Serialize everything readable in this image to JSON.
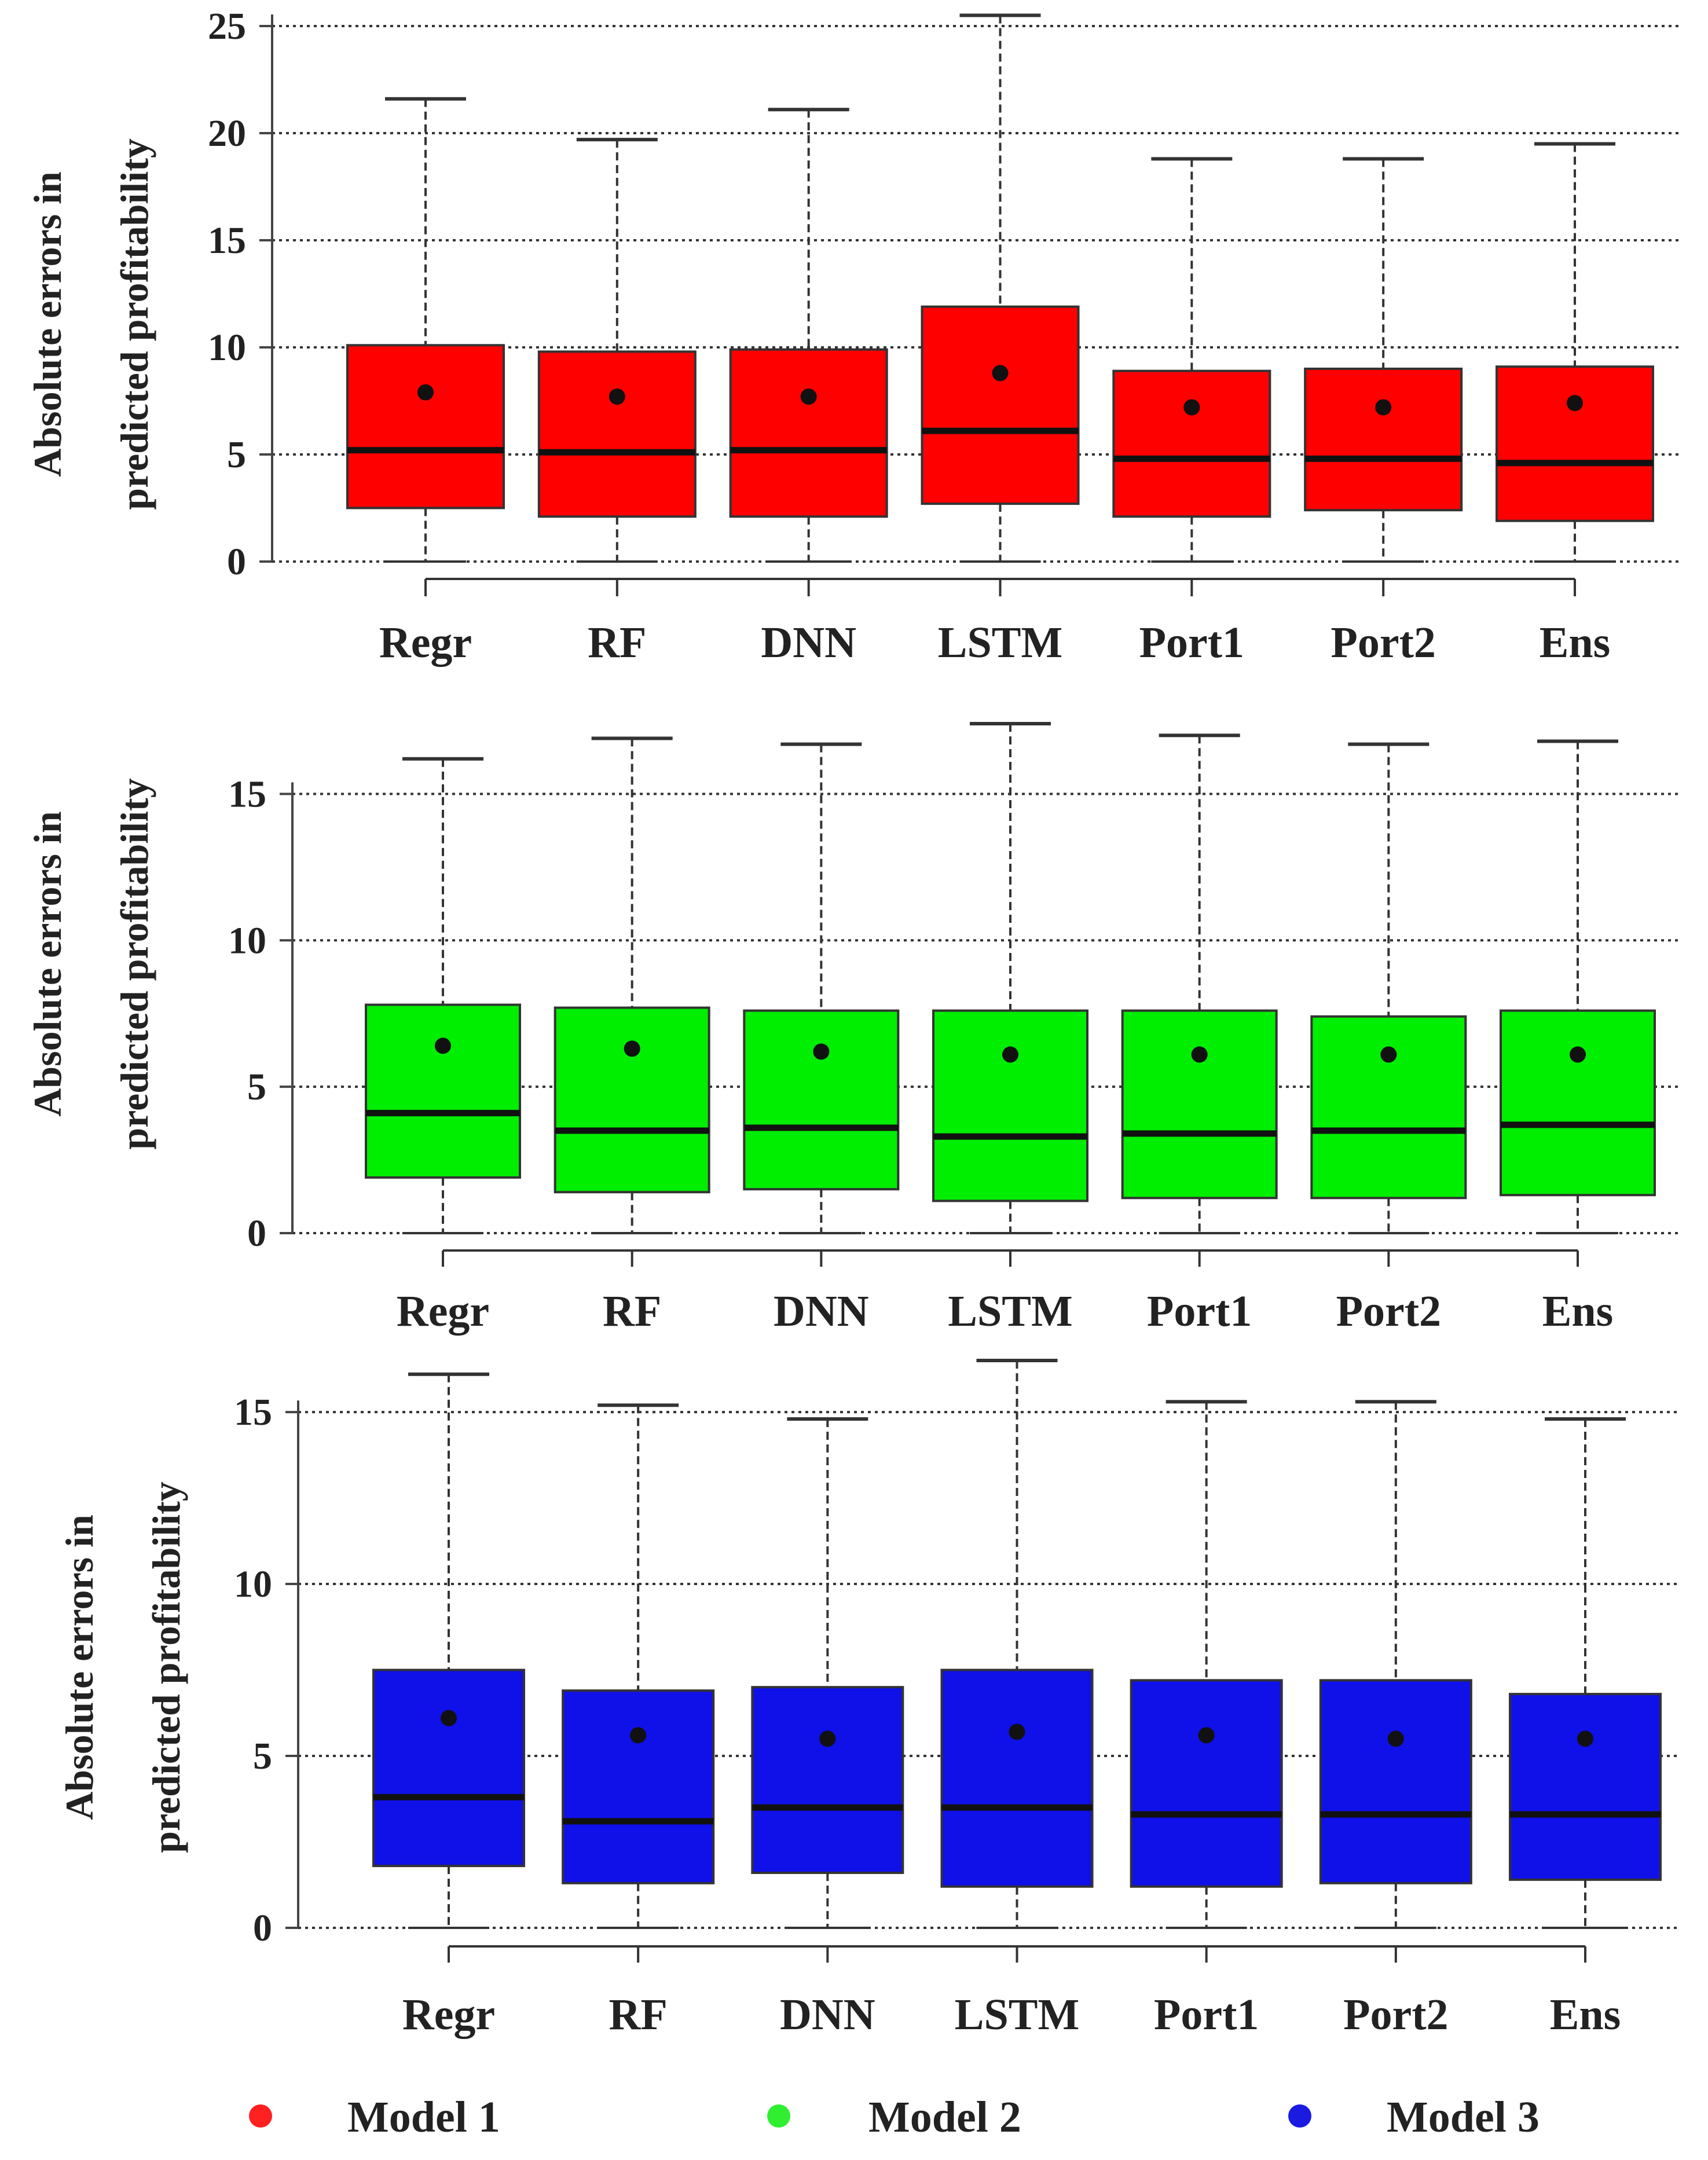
{
  "chart_data": [
    {
      "type": "box",
      "title": "",
      "model": "Model 1",
      "color": "#ff0000",
      "ylabel": [
        "Absolute  errors in",
        "predicted profitability"
      ],
      "xlabel": "",
      "ylim": [
        0,
        25
      ],
      "yticks": [
        0,
        5,
        10,
        15,
        20,
        25
      ],
      "grid": true,
      "categories": [
        "Regr",
        "RF",
        "DNN",
        "LSTM",
        "Port1",
        "Port2",
        "Ens"
      ],
      "boxes": [
        {
          "min": 0,
          "q1": 2.5,
          "median": 5.2,
          "q3": 10.1,
          "max": 21.6,
          "mean": 7.9
        },
        {
          "min": 0,
          "q1": 2.1,
          "median": 5.1,
          "q3": 9.8,
          "max": 19.7,
          "mean": 7.7
        },
        {
          "min": 0,
          "q1": 2.1,
          "median": 5.2,
          "q3": 9.9,
          "max": 21.1,
          "mean": 7.7
        },
        {
          "min": 0,
          "q1": 2.7,
          "median": 6.1,
          "q3": 11.9,
          "max": 25.5,
          "mean": 8.8
        },
        {
          "min": 0,
          "q1": 2.1,
          "median": 4.8,
          "q3": 8.9,
          "max": 18.8,
          "mean": 7.2
        },
        {
          "min": 0,
          "q1": 2.4,
          "median": 4.8,
          "q3": 9.0,
          "max": 18.8,
          "mean": 7.2
        },
        {
          "min": 0,
          "q1": 1.9,
          "median": 4.6,
          "q3": 9.1,
          "max": 19.5,
          "mean": 7.4
        }
      ]
    },
    {
      "type": "box",
      "title": "",
      "model": "Model 2",
      "color": "#00ee00",
      "ylabel": [
        "Absolute  errors in",
        "predicted profitability"
      ],
      "xlabel": "",
      "ylim": [
        0,
        17.5
      ],
      "yticks": [
        0,
        5,
        10,
        15
      ],
      "grid": true,
      "categories": [
        "Regr",
        "RF",
        "DNN",
        "LSTM",
        "Port1",
        "Port2",
        "Ens"
      ],
      "boxes": [
        {
          "min": 0,
          "q1": 1.9,
          "median": 4.1,
          "q3": 7.8,
          "max": 16.2,
          "mean": 6.4
        },
        {
          "min": 0,
          "q1": 1.4,
          "median": 3.5,
          "q3": 7.7,
          "max": 16.9,
          "mean": 6.3
        },
        {
          "min": 0,
          "q1": 1.5,
          "median": 3.6,
          "q3": 7.6,
          "max": 16.7,
          "mean": 6.2
        },
        {
          "min": 0,
          "q1": 1.1,
          "median": 3.3,
          "q3": 7.6,
          "max": 17.4,
          "mean": 6.1
        },
        {
          "min": 0,
          "q1": 1.2,
          "median": 3.4,
          "q3": 7.6,
          "max": 17.0,
          "mean": 6.1
        },
        {
          "min": 0,
          "q1": 1.2,
          "median": 3.5,
          "q3": 7.4,
          "max": 16.7,
          "mean": 6.1
        },
        {
          "min": 0,
          "q1": 1.3,
          "median": 3.7,
          "q3": 7.6,
          "max": 16.8,
          "mean": 6.1
        }
      ]
    },
    {
      "type": "box",
      "title": "",
      "model": "Model 3",
      "color": "#1010e8",
      "ylabel": [
        "Absolute  errors in",
        "predicted profitability"
      ],
      "xlabel": "",
      "ylim": [
        0,
        16.5
      ],
      "yticks": [
        0,
        5,
        10,
        15
      ],
      "grid": true,
      "categories": [
        "Regr",
        "RF",
        "DNN",
        "LSTM",
        "Port1",
        "Port2",
        "Ens"
      ],
      "boxes": [
        {
          "min": 0,
          "q1": 1.8,
          "median": 3.8,
          "q3": 7.5,
          "max": 16.1,
          "mean": 6.1
        },
        {
          "min": 0,
          "q1": 1.3,
          "median": 3.1,
          "q3": 6.9,
          "max": 15.2,
          "mean": 5.6
        },
        {
          "min": 0,
          "q1": 1.6,
          "median": 3.5,
          "q3": 7.0,
          "max": 14.8,
          "mean": 5.5
        },
        {
          "min": 0,
          "q1": 1.2,
          "median": 3.5,
          "q3": 7.5,
          "max": 16.5,
          "mean": 5.7
        },
        {
          "min": 0,
          "q1": 1.2,
          "median": 3.3,
          "q3": 7.2,
          "max": 15.3,
          "mean": 5.6
        },
        {
          "min": 0,
          "q1": 1.3,
          "median": 3.3,
          "q3": 7.2,
          "max": 15.3,
          "mean": 5.5
        },
        {
          "min": 0,
          "q1": 1.4,
          "median": 3.3,
          "q3": 6.8,
          "max": 14.8,
          "mean": 5.5
        }
      ]
    }
  ],
  "legend": {
    "placement": "bottom",
    "items": [
      {
        "label": "Model 1",
        "color": "#ff2020"
      },
      {
        "label": "Model 2",
        "color": "#30ee30"
      },
      {
        "label": "Model 3",
        "color": "#1a1ae0"
      }
    ]
  }
}
